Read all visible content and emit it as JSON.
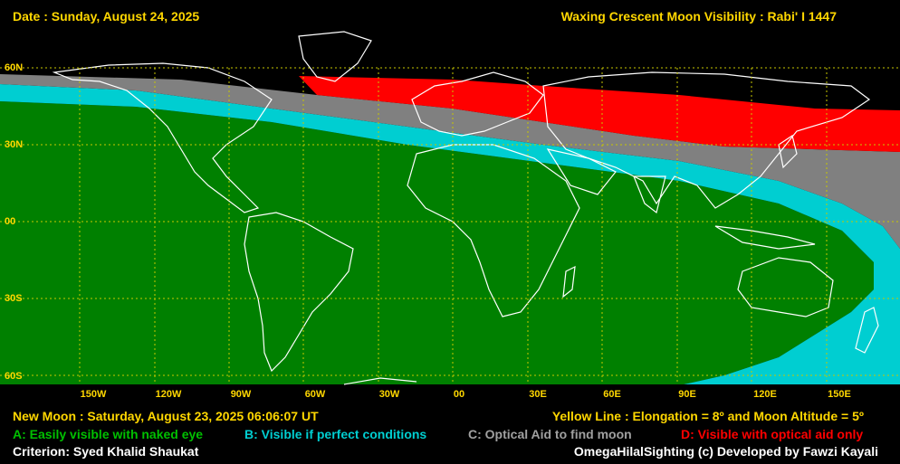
{
  "header": {
    "date": "Date : Sunday, August 24, 2025",
    "title": "Waxing Crescent Moon Visibility : Rabi' I 1447"
  },
  "map": {
    "lat_labels": [
      "60N",
      "30N",
      "00",
      "30S",
      "60S"
    ],
    "lon_labels": [
      "150W",
      "120W",
      "90W",
      "60W",
      "30W",
      "00",
      "30E",
      "60E",
      "90E",
      "120E",
      "150E"
    ],
    "colors": {
      "A": "#008000",
      "B": "#00CED1",
      "C": "#808080",
      "D": "#FF0000",
      "coast": "#FFFFFF",
      "grid": "#C8C800",
      "border": "#555555"
    }
  },
  "footer": {
    "new_moon": "New Moon : Saturday, August 23, 2025  06:06:07  UT",
    "yellow_line": "Yellow Line : Elongation = 8º  and Moon Altitude = 5º",
    "legend": {
      "A": "A: Easily visible with naked eye",
      "B": "B: Visible if perfect conditions",
      "C": "C: Optical Aid to find moon",
      "D": "D: Visible with optical aid only"
    },
    "criterion": "Criterion: Syed Khalid Shaukat",
    "credit": "OmegaHilalSighting  (c)  Developed by Fawzi Kayali"
  }
}
